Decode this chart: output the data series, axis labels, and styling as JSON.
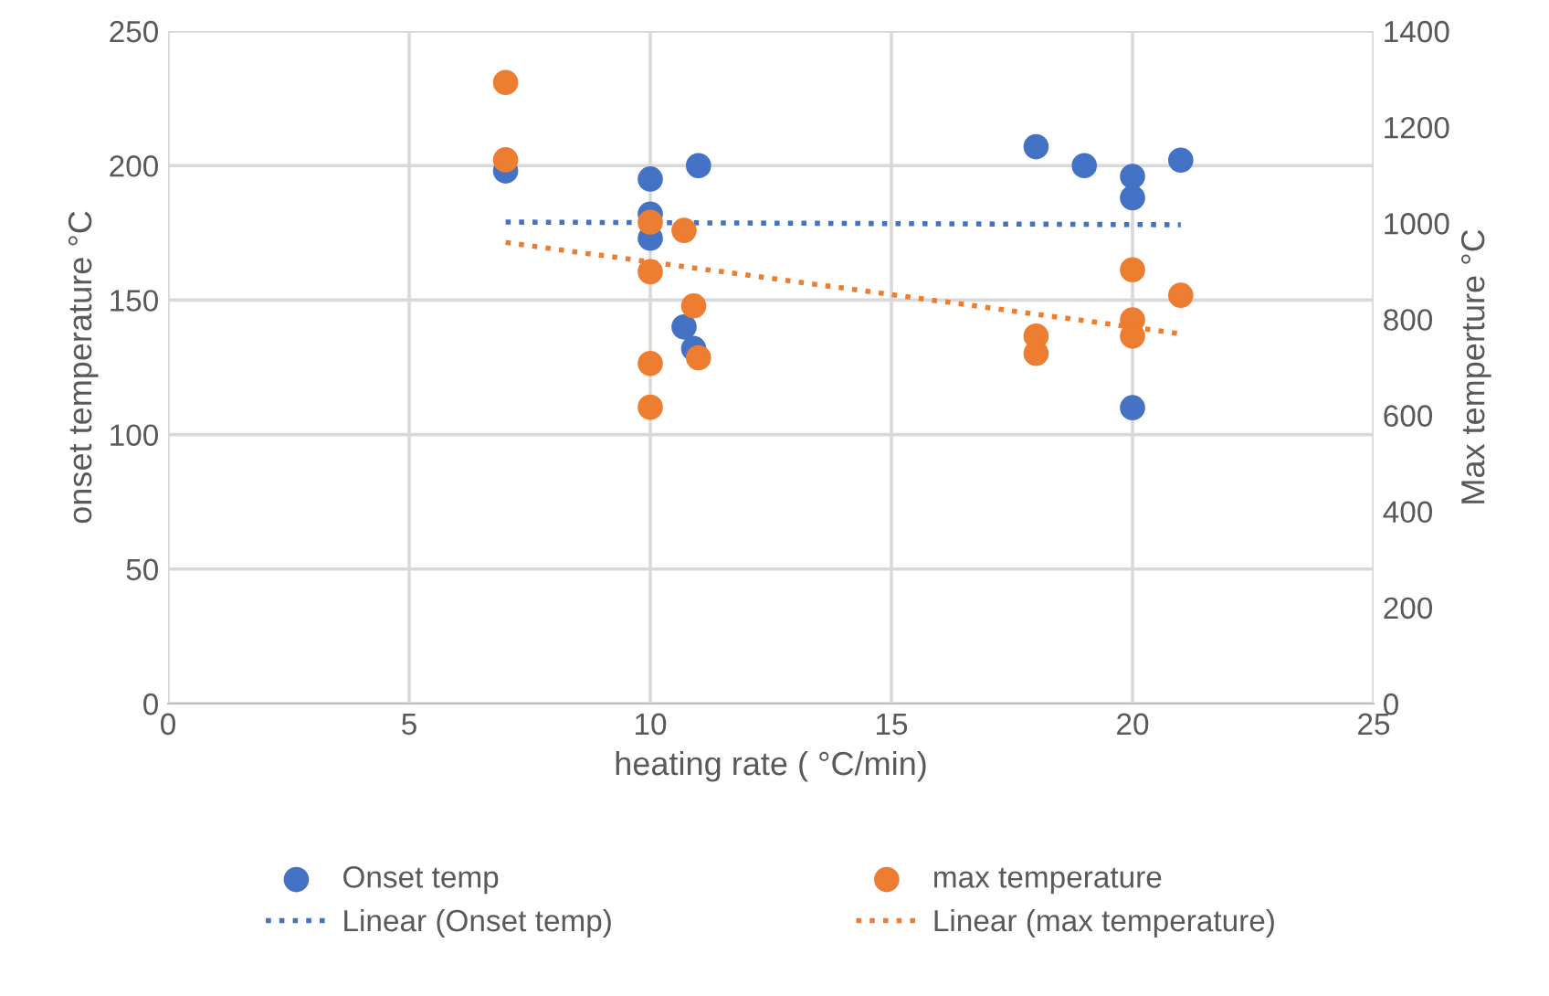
{
  "chart_data": {
    "type": "scatter",
    "xlabel": "heating rate ( °C/min)",
    "ylabel": "onset temperature °C",
    "y2label": "Max temperture °C",
    "xlim": [
      0,
      25
    ],
    "xticks": [
      0,
      5,
      10,
      15,
      20,
      25
    ],
    "ylim": [
      0,
      250
    ],
    "yticks": [
      0,
      50,
      100,
      150,
      200,
      250
    ],
    "y2lim": [
      0,
      1400
    ],
    "y2ticks": [
      0,
      200,
      400,
      600,
      800,
      1000,
      1200,
      1400
    ],
    "grid": true,
    "legend": "bottom",
    "marker": "circle",
    "series": [
      {
        "name": "Onset temp",
        "color": "#4472c4",
        "x": [
          7,
          10,
          11,
          10,
          10,
          10.7,
          10.9,
          18,
          19,
          20,
          20,
          21,
          20
        ],
        "values": [
          198,
          195,
          200,
          182,
          173,
          140,
          132,
          207,
          200,
          196,
          188,
          202,
          110
        ]
      },
      {
        "name": "max temperature",
        "axis": "y2",
        "color": "#ed7d31",
        "x": [
          7,
          7,
          10,
          10.7,
          10,
          10.9,
          11,
          10,
          10,
          18,
          18,
          20,
          20,
          20,
          21
        ],
        "values": [
          1293,
          1132,
          1002,
          985,
          899,
          828,
          720,
          708,
          617,
          765,
          729,
          903,
          799,
          765,
          850
        ]
      },
      {
        "name": "Linear (Onset temp)",
        "type": "line",
        "line_style": "dotted",
        "marker": "none",
        "color": "#4472c4",
        "x": [
          7,
          21
        ],
        "values": [
          179,
          178
        ]
      },
      {
        "name": "Linear (max temperature)",
        "type": "line",
        "line_style": "dotted",
        "marker": "none",
        "axis": "y2",
        "color": "#ed7d31",
        "x": [
          7,
          21
        ],
        "values": [
          960,
          770
        ]
      }
    ]
  }
}
